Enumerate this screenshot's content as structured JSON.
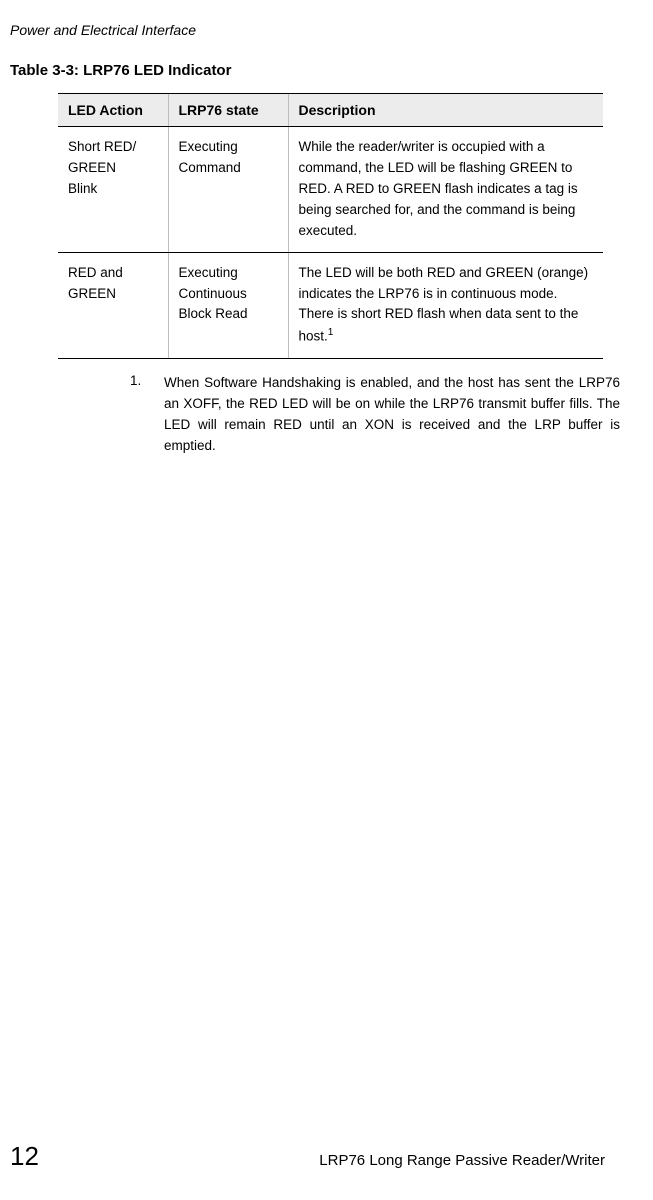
{
  "header": {
    "section": "Power and Electrical Interface"
  },
  "table": {
    "caption": "Table 3-3:  LRP76 LED Indicator",
    "columns": [
      "LED Action",
      "LRP76 state",
      "Description"
    ],
    "rows": [
      {
        "action": "Short RED/\nGREEN Blink",
        "state": "Executing Command",
        "desc": "While the reader/writer is occupied with a command, the LED will be flashing GREEN to RED. A RED to GREEN flash indicates a tag is being searched for, and the command is being executed."
      },
      {
        "action": "RED and GREEN",
        "state": "Executing Continuous Block Read",
        "desc_pre": "The LED will be both RED and GREEN (orange) indicates the LRP76 is in continuous mode. There is short RED flash when data sent to the host.",
        "sup": "1"
      }
    ]
  },
  "footnote": {
    "num": "1.",
    "text": "When Software Handshaking is enabled, and the host has sent the LRP76 an XOFF, the RED LED will be on while the LRP76 transmit buffer fills. The LED will remain RED until an XON is received and the LRP buffer is emptied."
  },
  "footer": {
    "page": "12",
    "title": "LRP76 Long Range Passive Reader/Writer"
  }
}
